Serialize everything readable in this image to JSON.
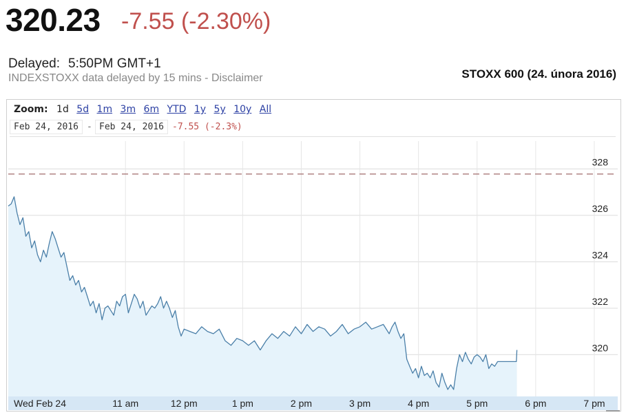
{
  "header": {
    "price": "320.23",
    "change": "-7.55 (-2.30%)",
    "delayed_label": "Delayed:",
    "delayed_time": "5:50PM GMT+1",
    "disclaimer": "INDEXSTOXX data delayed by 15 mins - Disclaimer",
    "index_title": "STOXX 600 (24. února 2016)"
  },
  "zoom": {
    "label": "Zoom:",
    "options": [
      "1d",
      "5d",
      "1m",
      "3m",
      "6m",
      "YTD",
      "1y",
      "5y",
      "10y",
      "All"
    ],
    "active": "1d"
  },
  "range": {
    "from": "Feb 24, 2016",
    "separator": "-",
    "to": "Feb 24, 2016",
    "change": "-7.55 (-2.3%)"
  },
  "colors": {
    "line": "#4a7fa8",
    "fill": "#e6f3fb",
    "prev_close": "#a06a6a",
    "change_red": "#c0504d",
    "xaxis_band": "#d6e7f5"
  },
  "chart_data": {
    "type": "area",
    "x_unit": "hour of day (GMT+1)",
    "xlim": [
      9.0,
      19.4
    ],
    "ylim": [
      318.2,
      329.2
    ],
    "y_ticks": [
      320,
      322,
      324,
      326,
      328
    ],
    "x_ticks": [
      {
        "x": 9.0,
        "label": "Wed Feb 24"
      },
      {
        "x": 11.0,
        "label": "11 am"
      },
      {
        "x": 12.0,
        "label": "12 pm"
      },
      {
        "x": 13.0,
        "label": "1 pm"
      },
      {
        "x": 14.0,
        "label": "2 pm"
      },
      {
        "x": 15.0,
        "label": "3 pm"
      },
      {
        "x": 16.0,
        "label": "4 pm"
      },
      {
        "x": 17.0,
        "label": "5 pm"
      },
      {
        "x": 18.0,
        "label": "6 pm"
      },
      {
        "x": 19.0,
        "label": "7 pm"
      }
    ],
    "previous_close": 327.78,
    "grid": true,
    "series": [
      {
        "x": [
          9.0,
          9.05,
          9.1,
          9.15,
          9.2,
          9.25,
          9.3,
          9.35,
          9.4,
          9.45,
          9.5,
          9.55,
          9.6,
          9.65,
          9.7,
          9.75,
          9.8,
          9.85,
          9.9,
          9.95,
          10.0,
          10.05,
          10.1,
          10.15,
          10.2,
          10.25,
          10.3,
          10.35,
          10.4,
          10.45,
          10.5,
          10.55,
          10.6,
          10.65,
          10.7,
          10.75,
          10.8,
          10.85,
          10.9,
          10.95,
          11.0,
          11.05,
          11.1,
          11.15,
          11.2,
          11.25,
          11.3,
          11.35,
          11.4,
          11.45,
          11.5,
          11.55,
          11.6,
          11.65,
          11.7,
          11.75,
          11.8,
          11.85,
          11.9,
          11.95,
          12.0,
          12.1,
          12.2,
          12.3,
          12.4,
          12.5,
          12.6,
          12.7,
          12.8,
          12.9,
          13.0,
          13.1,
          13.2,
          13.3,
          13.4,
          13.5,
          13.6,
          13.7,
          13.8,
          13.9,
          14.0,
          14.1,
          14.2,
          14.3,
          14.4,
          14.5,
          14.6,
          14.7,
          14.8,
          14.9,
          15.0,
          15.1,
          15.2,
          15.3,
          15.4,
          15.5,
          15.55,
          15.6,
          15.65,
          15.7,
          15.75,
          15.8,
          15.85,
          15.9,
          15.95,
          16.0,
          16.05,
          16.1,
          16.15,
          16.2,
          16.25,
          16.3,
          16.35,
          16.4,
          16.45,
          16.5,
          16.55,
          16.6,
          16.65,
          16.7,
          16.75,
          16.8,
          16.85,
          16.9,
          16.95,
          17.0,
          17.05,
          17.1,
          17.15,
          17.2,
          17.25,
          17.3,
          17.35,
          17.4,
          17.45,
          17.5,
          17.55,
          17.6,
          17.65,
          17.67,
          17.68
        ],
        "y": [
          326.4,
          326.5,
          326.8,
          326.1,
          325.6,
          325.9,
          325.1,
          325.3,
          324.6,
          324.9,
          324.3,
          324.0,
          324.5,
          324.2,
          324.8,
          325.3,
          325.0,
          324.6,
          324.2,
          324.4,
          323.8,
          323.2,
          323.4,
          323.0,
          323.2,
          322.7,
          322.9,
          322.5,
          322.1,
          322.3,
          321.8,
          322.2,
          321.5,
          322.0,
          322.1,
          321.9,
          321.7,
          322.3,
          322.1,
          322.5,
          322.6,
          321.8,
          322.2,
          322.6,
          322.4,
          322.0,
          322.3,
          321.7,
          321.9,
          322.1,
          322.0,
          322.2,
          322.5,
          322.0,
          322.3,
          322.0,
          321.6,
          321.9,
          321.2,
          320.8,
          321.1,
          321.0,
          320.9,
          321.2,
          321.0,
          320.9,
          321.1,
          320.6,
          320.4,
          320.7,
          320.6,
          320.4,
          320.6,
          320.2,
          320.6,
          320.9,
          320.7,
          321.0,
          320.8,
          321.2,
          320.9,
          321.3,
          321.0,
          321.2,
          321.1,
          320.8,
          321.0,
          321.3,
          320.9,
          321.1,
          321.2,
          321.4,
          321.1,
          321.2,
          321.3,
          320.9,
          321.2,
          321.4,
          321.0,
          320.7,
          320.9,
          319.8,
          319.5,
          319.2,
          319.4,
          319.0,
          319.5,
          319.1,
          319.2,
          319.0,
          319.3,
          318.8,
          318.6,
          319.2,
          318.8,
          318.5,
          318.7,
          318.5,
          319.4,
          320.0,
          319.7,
          320.1,
          319.8,
          319.6,
          319.9,
          320.0,
          319.9,
          319.7,
          320.0,
          319.4,
          319.6,
          319.5,
          319.7,
          319.7,
          319.7,
          319.7,
          319.7,
          319.7,
          319.7,
          319.7,
          320.2
        ]
      }
    ]
  }
}
